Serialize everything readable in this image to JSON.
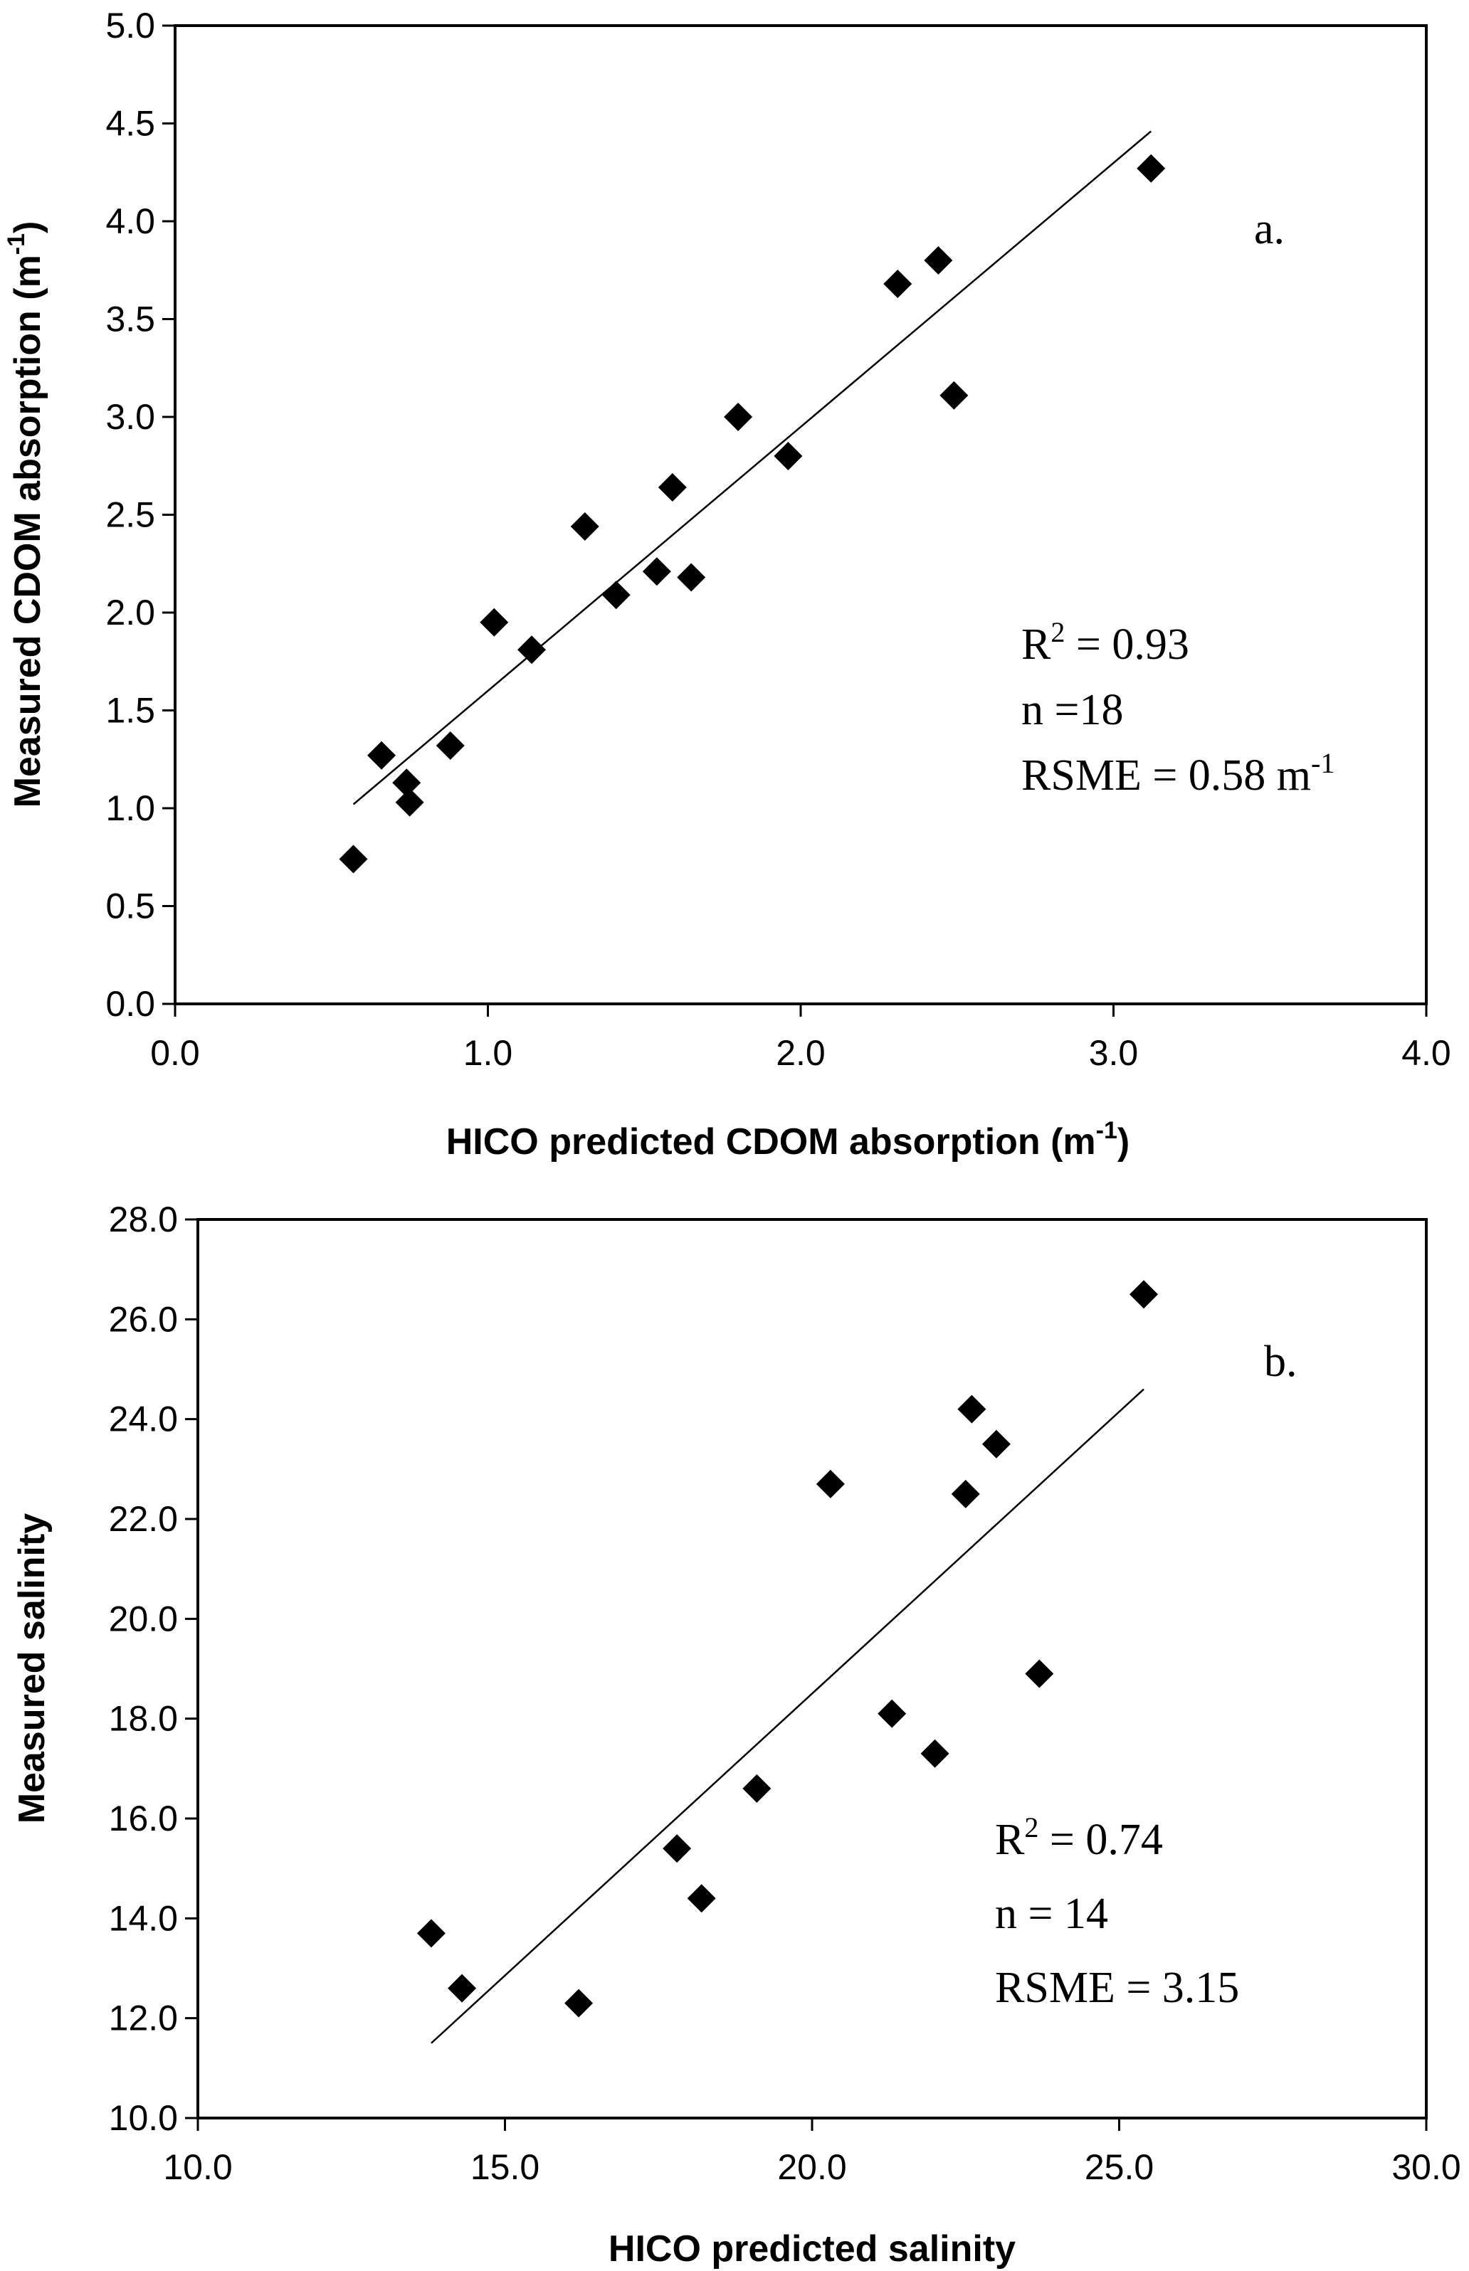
{
  "chart_data": [
    {
      "type": "scatter",
      "panel_label": "a.",
      "xlabel": "HICO predicted CDOM absorption (m",
      "xlabel_sup": "-1",
      "xlabel_end": ")",
      "ylabel": "Measured CDOM absorption (m",
      "ylabel_sup": "-1",
      "ylabel_end": ")",
      "xlim": [
        0,
        4
      ],
      "ylim": [
        0,
        5
      ],
      "xticks": [
        "0.0",
        "1.0",
        "2.0",
        "3.0",
        "4.0"
      ],
      "yticks": [
        "0.0",
        "0.5",
        "1.0",
        "1.5",
        "2.0",
        "2.5",
        "3.0",
        "3.5",
        "4.0",
        "4.5",
        "5.0"
      ],
      "points": [
        {
          "x": 0.57,
          "y": 0.74
        },
        {
          "x": 0.66,
          "y": 1.27
        },
        {
          "x": 0.74,
          "y": 1.13
        },
        {
          "x": 0.75,
          "y": 1.03
        },
        {
          "x": 0.88,
          "y": 1.32
        },
        {
          "x": 1.02,
          "y": 1.95
        },
        {
          "x": 1.14,
          "y": 1.81
        },
        {
          "x": 1.31,
          "y": 2.44
        },
        {
          "x": 1.41,
          "y": 2.09
        },
        {
          "x": 1.54,
          "y": 2.21
        },
        {
          "x": 1.59,
          "y": 2.64
        },
        {
          "x": 1.65,
          "y": 2.18
        },
        {
          "x": 1.8,
          "y": 3.0
        },
        {
          "x": 1.96,
          "y": 2.8
        },
        {
          "x": 2.31,
          "y": 3.68
        },
        {
          "x": 2.44,
          "y": 3.8
        },
        {
          "x": 2.49,
          "y": 3.11
        },
        {
          "x": 3.12,
          "y": 4.27
        }
      ],
      "trendline": {
        "x1": 0.57,
        "y1": 1.02,
        "x2": 3.12,
        "y2": 4.46
      },
      "stats": {
        "r2_label": "R",
        "r2_sup": "2",
        "r2_value": "  = 0.93",
        "n": "n =18",
        "rsme": "RSME = 0.58 m",
        "rsme_sup": "-1"
      }
    },
    {
      "type": "scatter",
      "panel_label": "b.",
      "xlabel": "HICO predicted salinity",
      "ylabel": "Measured salinity",
      "xlim": [
        10,
        30
      ],
      "ylim": [
        10,
        28
      ],
      "xticks": [
        "10.0",
        "15.0",
        "20.0",
        "25.0",
        "30.0"
      ],
      "yticks": [
        "10.0",
        "12.0",
        "14.0",
        "16.0",
        "18.0",
        "20.0",
        "22.0",
        "24.0",
        "26.0",
        "28.0"
      ],
      "points": [
        {
          "x": 13.8,
          "y": 13.7
        },
        {
          "x": 14.3,
          "y": 12.6
        },
        {
          "x": 16.2,
          "y": 12.3
        },
        {
          "x": 17.8,
          "y": 15.4
        },
        {
          "x": 18.2,
          "y": 14.4
        },
        {
          "x": 19.1,
          "y": 16.6
        },
        {
          "x": 20.3,
          "y": 22.7
        },
        {
          "x": 21.3,
          "y": 18.1
        },
        {
          "x": 22.0,
          "y": 17.3
        },
        {
          "x": 22.5,
          "y": 22.5
        },
        {
          "x": 22.6,
          "y": 24.2
        },
        {
          "x": 23.0,
          "y": 23.5
        },
        {
          "x": 23.7,
          "y": 18.9
        },
        {
          "x": 25.4,
          "y": 26.5
        }
      ],
      "trendline": {
        "x1": 13.8,
        "y1": 11.5,
        "x2": 25.4,
        "y2": 24.6
      },
      "stats": {
        "r2_label": "R",
        "r2_sup": "2",
        "r2_value": " = 0.74",
        "n": "n = 14",
        "rsme": "RSME = 3.15"
      }
    }
  ]
}
